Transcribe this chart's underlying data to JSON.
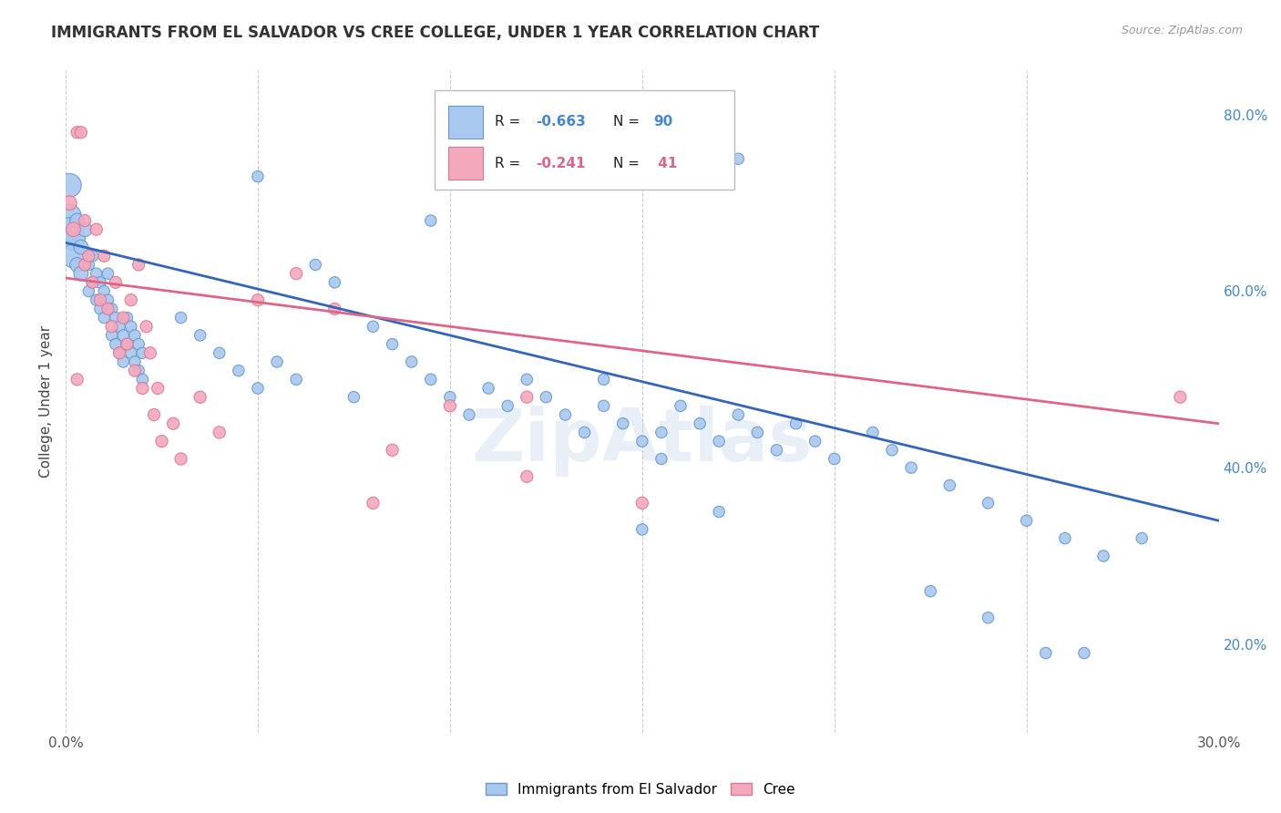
{
  "title": "IMMIGRANTS FROM EL SALVADOR VS CREE COLLEGE, UNDER 1 YEAR CORRELATION CHART",
  "source": "Source: ZipAtlas.com",
  "ylabel": "College, Under 1 year",
  "xlim": [
    0.0,
    0.3
  ],
  "ylim": [
    0.1,
    0.85
  ],
  "blue_color": "#A8C8F0",
  "pink_color": "#F4A8BC",
  "blue_edge_color": "#6699CC",
  "pink_edge_color": "#DD7799",
  "blue_line_color": "#3366BB",
  "pink_line_color": "#DD6688",
  "watermark": "ZipAtlas",
  "blue_intercept": 0.655,
  "blue_slope": -1.05,
  "pink_intercept": 0.615,
  "pink_slope": -0.55,
  "blue_points": [
    [
      0.001,
      0.685
    ],
    [
      0.001,
      0.67
    ],
    [
      0.001,
      0.72
    ],
    [
      0.002,
      0.66
    ],
    [
      0.002,
      0.64
    ],
    [
      0.003,
      0.63
    ],
    [
      0.003,
      0.68
    ],
    [
      0.004,
      0.65
    ],
    [
      0.004,
      0.62
    ],
    [
      0.005,
      0.67
    ],
    [
      0.006,
      0.6
    ],
    [
      0.006,
      0.63
    ],
    [
      0.007,
      0.64
    ],
    [
      0.007,
      0.61
    ],
    [
      0.008,
      0.59
    ],
    [
      0.008,
      0.62
    ],
    [
      0.009,
      0.58
    ],
    [
      0.009,
      0.61
    ],
    [
      0.01,
      0.6
    ],
    [
      0.01,
      0.57
    ],
    [
      0.011,
      0.59
    ],
    [
      0.011,
      0.62
    ],
    [
      0.012,
      0.58
    ],
    [
      0.012,
      0.55
    ],
    [
      0.013,
      0.57
    ],
    [
      0.013,
      0.54
    ],
    [
      0.014,
      0.56
    ],
    [
      0.014,
      0.53
    ],
    [
      0.015,
      0.55
    ],
    [
      0.015,
      0.52
    ],
    [
      0.016,
      0.57
    ],
    [
      0.016,
      0.54
    ],
    [
      0.017,
      0.53
    ],
    [
      0.017,
      0.56
    ],
    [
      0.018,
      0.52
    ],
    [
      0.018,
      0.55
    ],
    [
      0.019,
      0.51
    ],
    [
      0.019,
      0.54
    ],
    [
      0.02,
      0.5
    ],
    [
      0.02,
      0.53
    ],
    [
      0.03,
      0.57
    ],
    [
      0.035,
      0.55
    ],
    [
      0.04,
      0.53
    ],
    [
      0.045,
      0.51
    ],
    [
      0.05,
      0.49
    ],
    [
      0.055,
      0.52
    ],
    [
      0.06,
      0.5
    ],
    [
      0.065,
      0.63
    ],
    [
      0.07,
      0.61
    ],
    [
      0.075,
      0.48
    ],
    [
      0.08,
      0.56
    ],
    [
      0.085,
      0.54
    ],
    [
      0.09,
      0.52
    ],
    [
      0.095,
      0.5
    ],
    [
      0.1,
      0.48
    ],
    [
      0.105,
      0.46
    ],
    [
      0.11,
      0.49
    ],
    [
      0.115,
      0.47
    ],
    [
      0.12,
      0.5
    ],
    [
      0.125,
      0.48
    ],
    [
      0.13,
      0.46
    ],
    [
      0.135,
      0.44
    ],
    [
      0.14,
      0.47
    ],
    [
      0.14,
      0.5
    ],
    [
      0.145,
      0.45
    ],
    [
      0.15,
      0.43
    ],
    [
      0.155,
      0.41
    ],
    [
      0.155,
      0.44
    ],
    [
      0.16,
      0.47
    ],
    [
      0.165,
      0.45
    ],
    [
      0.17,
      0.43
    ],
    [
      0.175,
      0.46
    ],
    [
      0.18,
      0.44
    ],
    [
      0.185,
      0.42
    ],
    [
      0.19,
      0.45
    ],
    [
      0.195,
      0.43
    ],
    [
      0.2,
      0.41
    ],
    [
      0.21,
      0.44
    ],
    [
      0.215,
      0.42
    ],
    [
      0.22,
      0.4
    ],
    [
      0.23,
      0.38
    ],
    [
      0.24,
      0.36
    ],
    [
      0.25,
      0.34
    ],
    [
      0.26,
      0.32
    ],
    [
      0.27,
      0.3
    ],
    [
      0.225,
      0.26
    ],
    [
      0.24,
      0.23
    ],
    [
      0.255,
      0.19
    ],
    [
      0.265,
      0.19
    ],
    [
      0.28,
      0.32
    ],
    [
      0.15,
      0.33
    ],
    [
      0.17,
      0.35
    ],
    [
      0.175,
      0.75
    ],
    [
      0.05,
      0.73
    ],
    [
      0.095,
      0.68
    ]
  ],
  "pink_points": [
    [
      0.001,
      0.7
    ],
    [
      0.002,
      0.67
    ],
    [
      0.003,
      0.78
    ],
    [
      0.004,
      0.78
    ],
    [
      0.005,
      0.68
    ],
    [
      0.005,
      0.63
    ],
    [
      0.006,
      0.64
    ],
    [
      0.007,
      0.61
    ],
    [
      0.008,
      0.67
    ],
    [
      0.009,
      0.59
    ],
    [
      0.01,
      0.64
    ],
    [
      0.011,
      0.58
    ],
    [
      0.012,
      0.56
    ],
    [
      0.013,
      0.61
    ],
    [
      0.014,
      0.53
    ],
    [
      0.015,
      0.57
    ],
    [
      0.016,
      0.54
    ],
    [
      0.017,
      0.59
    ],
    [
      0.018,
      0.51
    ],
    [
      0.019,
      0.63
    ],
    [
      0.02,
      0.49
    ],
    [
      0.021,
      0.56
    ],
    [
      0.022,
      0.53
    ],
    [
      0.023,
      0.46
    ],
    [
      0.024,
      0.49
    ],
    [
      0.025,
      0.43
    ],
    [
      0.028,
      0.45
    ],
    [
      0.03,
      0.41
    ],
    [
      0.003,
      0.5
    ],
    [
      0.035,
      0.48
    ],
    [
      0.04,
      0.44
    ],
    [
      0.05,
      0.59
    ],
    [
      0.06,
      0.62
    ],
    [
      0.07,
      0.58
    ],
    [
      0.08,
      0.36
    ],
    [
      0.085,
      0.42
    ],
    [
      0.1,
      0.47
    ],
    [
      0.12,
      0.48
    ],
    [
      0.29,
      0.48
    ],
    [
      0.15,
      0.36
    ],
    [
      0.12,
      0.39
    ]
  ],
  "blue_big_points": [
    [
      0.001,
      0.695
    ]
  ],
  "pink_big_points": []
}
